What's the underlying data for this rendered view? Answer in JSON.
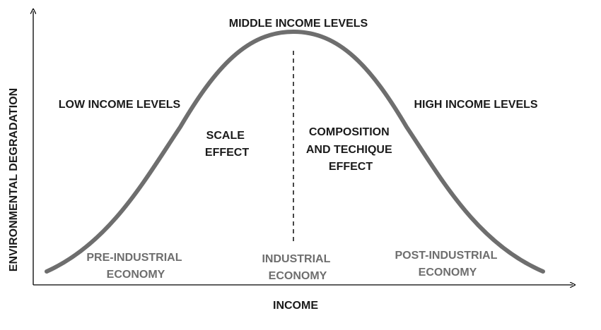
{
  "axes": {
    "x_label": "INCOME",
    "y_label": "ENVIRONMENTAL DEGRADATION"
  },
  "regions": {
    "low_income": "LOW INCOME LEVELS",
    "middle_income": "MIDDLE INCOME LEVELS",
    "high_income": "HIGH INCOME LEVELS"
  },
  "effects": {
    "scale": [
      "SCALE",
      "EFFECT"
    ],
    "composition": [
      "COMPOSITION",
      "AND TECHIQUE",
      "EFFECT"
    ]
  },
  "economies": {
    "pre_industrial": [
      "PRE-INDUSTRIAL",
      "ECONOMY"
    ],
    "industrial": [
      "INDUSTRIAL",
      "ECONOMY"
    ],
    "post_industrial": [
      "POST-INDUSTRIAL",
      "ECONOMY"
    ]
  },
  "colors": {
    "curve": "#6e6e6e",
    "axis": "#000000",
    "dark_text": "#1a1a1a",
    "economy_text": "#6e6e6e"
  }
}
